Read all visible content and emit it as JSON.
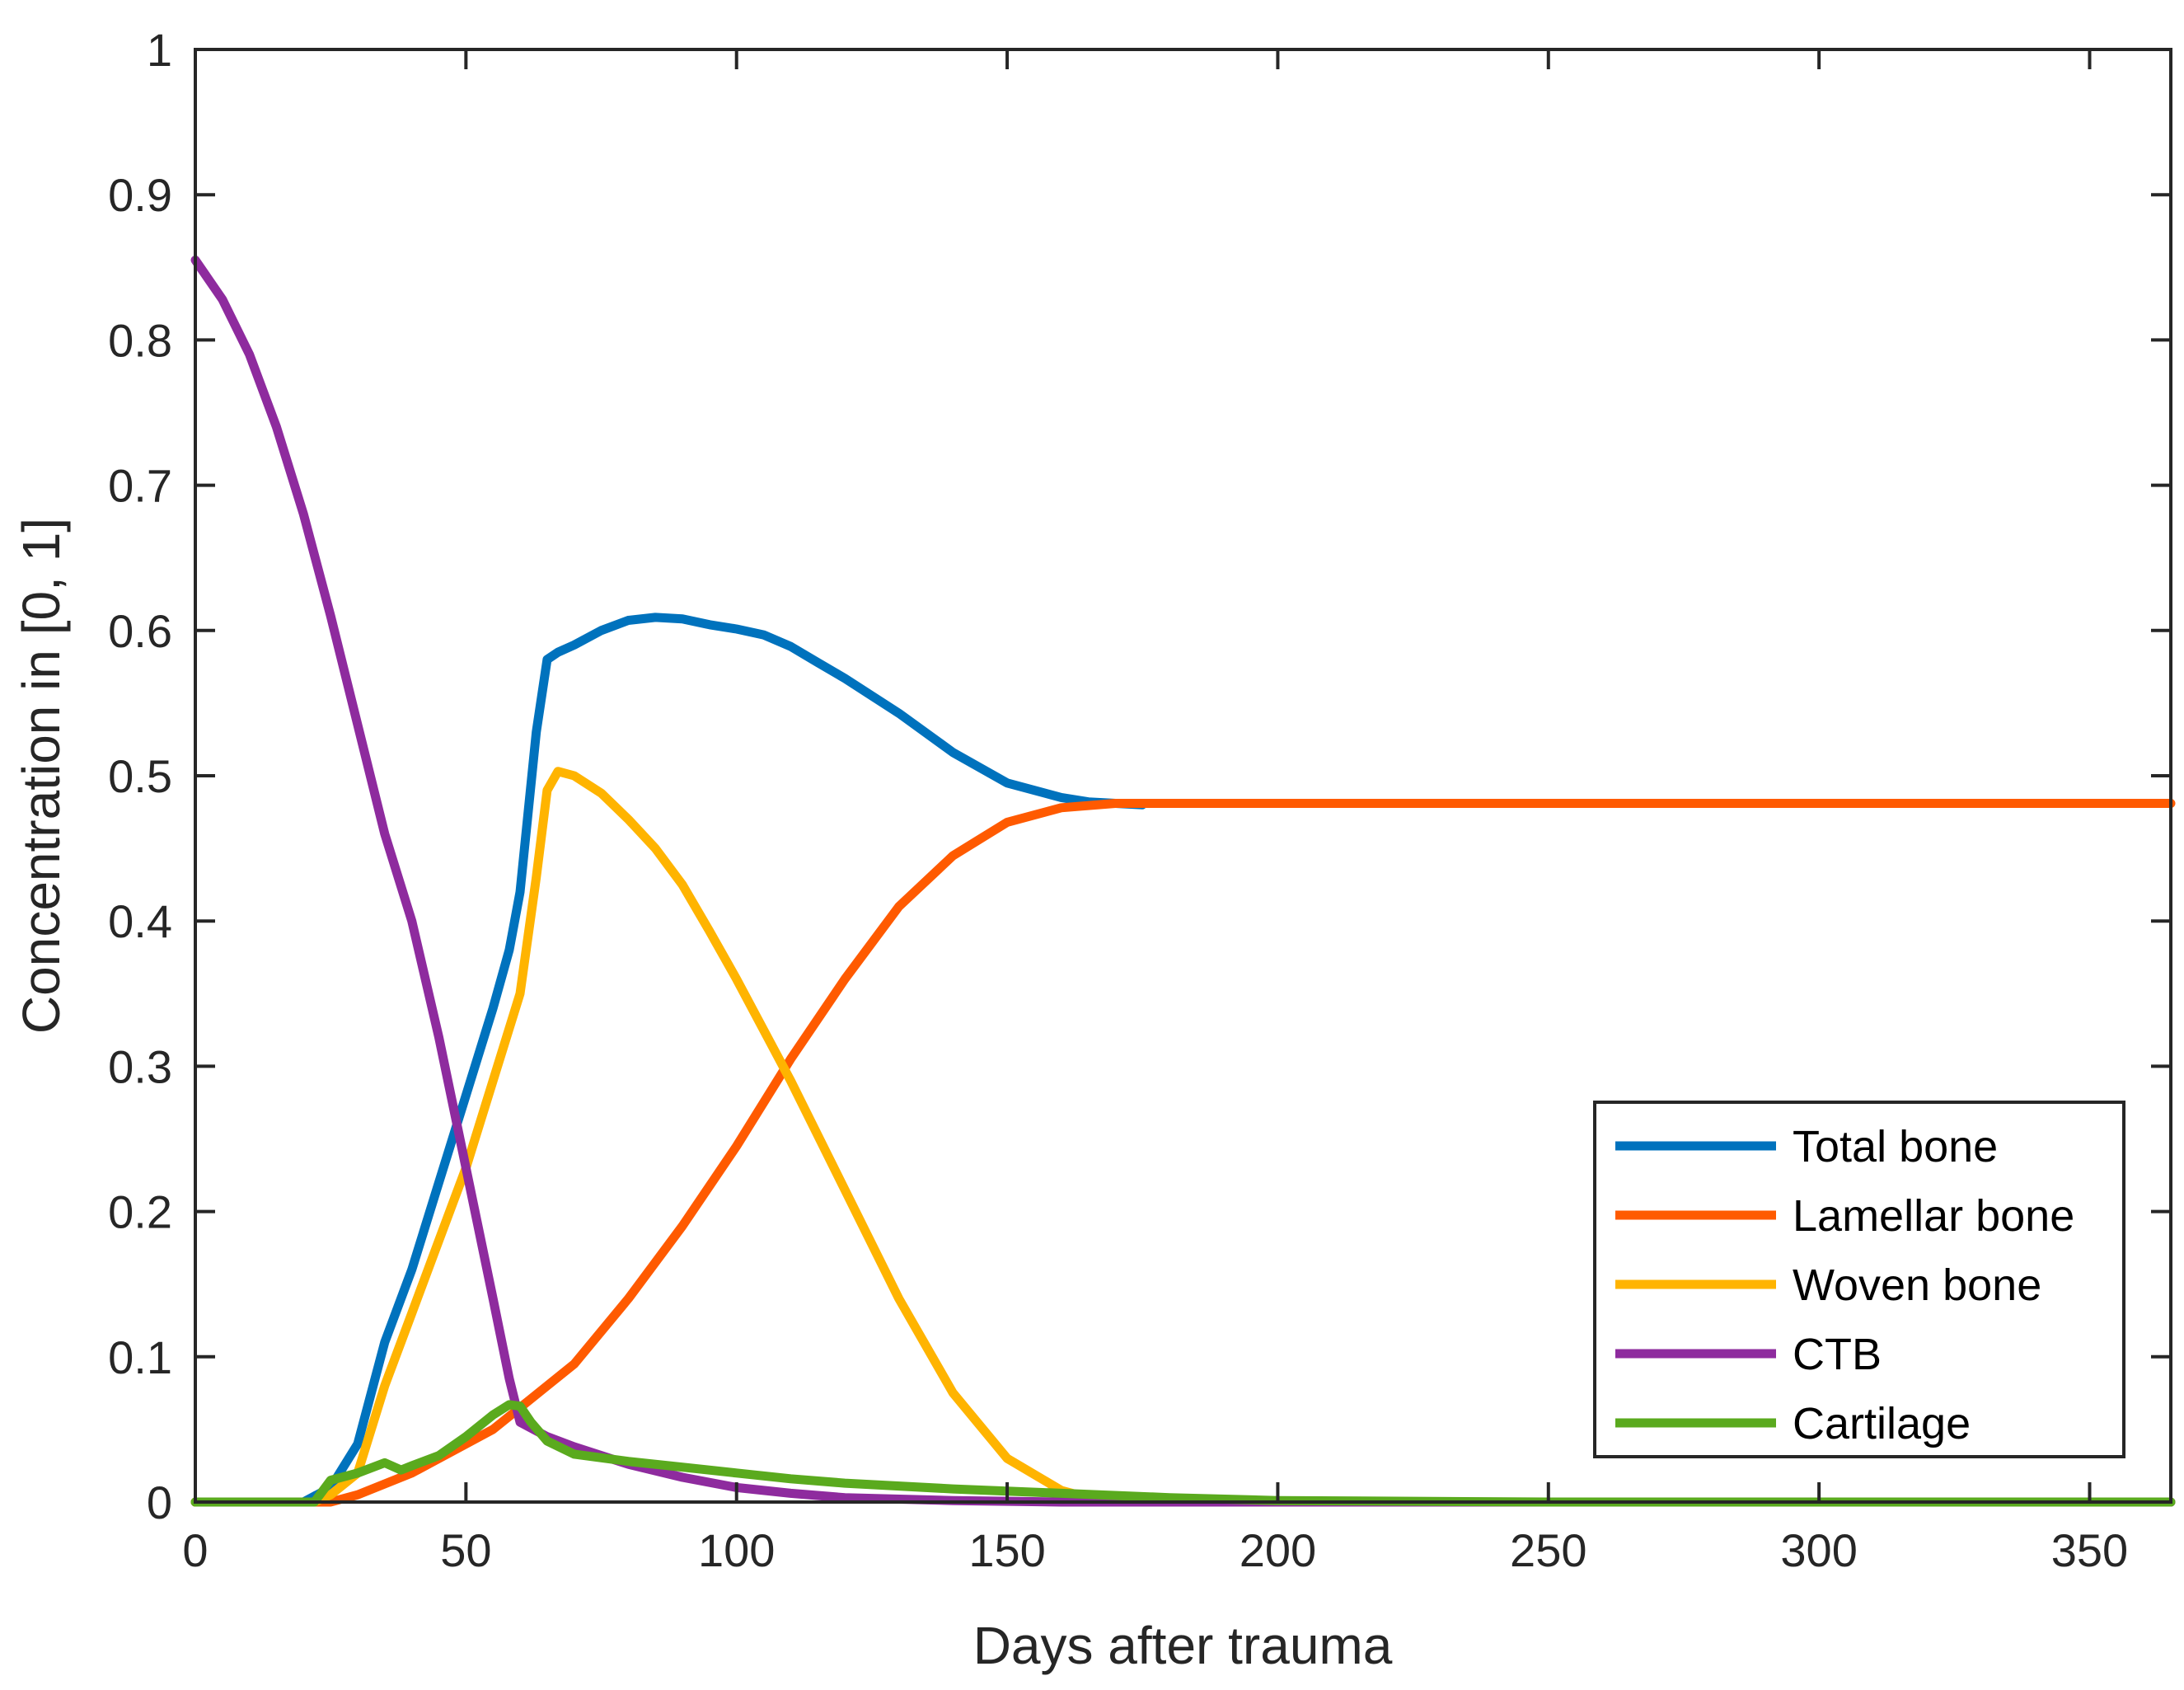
{
  "chart_data": {
    "type": "line",
    "title": "",
    "xlabel": "Days after trauma",
    "ylabel": "Concentration in [0, 1]",
    "xlim": [
      0,
      365
    ],
    "ylim": [
      0,
      1
    ],
    "xticks": [
      0,
      50,
      100,
      150,
      200,
      250,
      300,
      350
    ],
    "xtick_labels": [
      "0",
      "50",
      "100",
      "150",
      "200",
      "250",
      "300",
      "350"
    ],
    "yticks": [
      0,
      0.1,
      0.2,
      0.3,
      0.4,
      0.5,
      0.6,
      0.7,
      0.8,
      0.9,
      1
    ],
    "ytick_labels": [
      "0",
      "0.1",
      "0.2",
      "0.3",
      "0.4",
      "0.5",
      "0.6",
      "0.7",
      "0.8",
      "0.9",
      "1"
    ],
    "grid": false,
    "legend_position": "bottom-right",
    "series": [
      {
        "name": "Total bone",
        "color": "#0072BD",
        "x": [
          0,
          20,
          25,
          30,
          35,
          40,
          45,
          50,
          55,
          58,
          60,
          63,
          65,
          67,
          70,
          75,
          80,
          85,
          90,
          95,
          100,
          105,
          110,
          115,
          120,
          130,
          140,
          150,
          160,
          165,
          170,
          175
        ],
        "y": [
          0,
          0,
          0.01,
          0.04,
          0.11,
          0.16,
          0.22,
          0.28,
          0.34,
          0.38,
          0.42,
          0.53,
          0.58,
          0.585,
          0.59,
          0.6,
          0.607,
          0.609,
          0.608,
          0.604,
          0.601,
          0.597,
          0.589,
          0.578,
          0.567,
          0.543,
          0.516,
          0.495,
          0.485,
          0.482,
          0.481,
          0.48
        ]
      },
      {
        "name": "Lamellar bone",
        "color": "#FF5A00",
        "x": [
          0,
          25,
          30,
          40,
          50,
          55,
          60,
          65,
          70,
          80,
          90,
          100,
          110,
          120,
          130,
          140,
          150,
          160,
          170,
          180,
          200,
          250,
          300,
          365
        ],
        "y": [
          0,
          0,
          0.005,
          0.02,
          0.04,
          0.05,
          0.065,
          0.08,
          0.095,
          0.14,
          0.19,
          0.245,
          0.305,
          0.36,
          0.41,
          0.445,
          0.468,
          0.478,
          0.481,
          0.481,
          0.481,
          0.481,
          0.481,
          0.481
        ]
      },
      {
        "name": "Woven bone",
        "color": "#FFB400",
        "x": [
          0,
          22,
          25,
          30,
          35,
          40,
          45,
          50,
          55,
          60,
          63,
          65,
          67,
          70,
          75,
          80,
          85,
          90,
          95,
          100,
          110,
          120,
          130,
          140,
          150,
          160,
          165,
          170,
          180,
          365
        ],
        "y": [
          0,
          0,
          0.005,
          0.02,
          0.08,
          0.13,
          0.18,
          0.23,
          0.29,
          0.35,
          0.43,
          0.49,
          0.503,
          0.5,
          0.488,
          0.47,
          0.45,
          0.425,
          0.393,
          0.36,
          0.29,
          0.215,
          0.14,
          0.075,
          0.03,
          0.008,
          0.003,
          0.001,
          0,
          0
        ]
      },
      {
        "name": "CTB",
        "color": "#8E2B9E",
        "x": [
          0,
          5,
          10,
          15,
          20,
          25,
          30,
          35,
          40,
          45,
          50,
          55,
          58,
          60,
          65,
          70,
          80,
          90,
          100,
          110,
          120,
          140,
          160,
          200,
          365
        ],
        "y": [
          0.855,
          0.828,
          0.79,
          0.74,
          0.68,
          0.61,
          0.535,
          0.46,
          0.4,
          0.32,
          0.23,
          0.14,
          0.085,
          0.055,
          0.045,
          0.038,
          0.026,
          0.017,
          0.01,
          0.006,
          0.003,
          0.001,
          0,
          0,
          0
        ]
      },
      {
        "name": "Cartilage",
        "color": "#5AAA1E",
        "x": [
          0,
          20,
          22,
          25,
          30,
          35,
          38,
          40,
          45,
          50,
          55,
          58,
          60,
          62,
          65,
          70,
          80,
          90,
          100,
          110,
          120,
          140,
          160,
          180,
          200,
          250,
          365
        ],
        "y": [
          0,
          0,
          0,
          0.015,
          0.02,
          0.027,
          0.022,
          0.025,
          0.032,
          0.045,
          0.06,
          0.067,
          0.066,
          0.055,
          0.042,
          0.033,
          0.028,
          0.024,
          0.02,
          0.016,
          0.013,
          0.009,
          0.006,
          0.003,
          0.001,
          0,
          0
        ]
      }
    ]
  }
}
